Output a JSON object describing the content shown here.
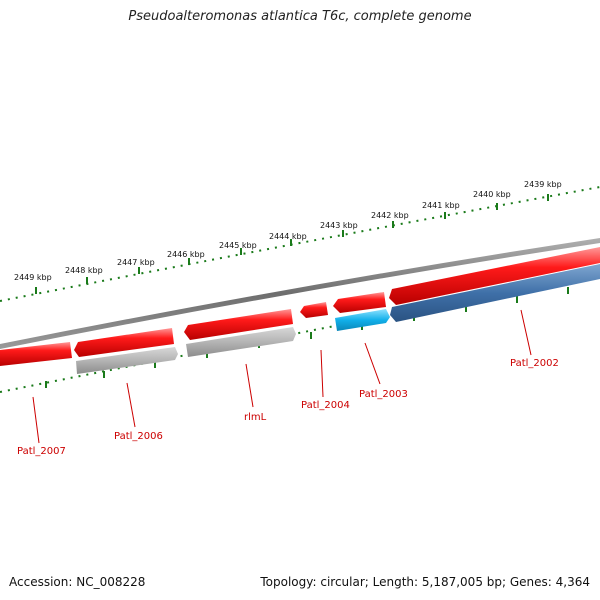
{
  "title": "Pseudoalteromonas atlantica T6c, complete genome",
  "accession": "Accession: NC_008228",
  "topology": "Topology: circular; Length: 5,187,005 bp; Genes: 4,364",
  "ruler_labels": [
    "2439 kbp",
    "2440 kbp",
    "2441 kbp",
    "2442 kbp",
    "2443 kbp",
    "2444 kbp",
    "2445 kbp",
    "2446 kbp",
    "2447 kbp",
    "2448 kbp",
    "2449 kbp"
  ],
  "gene_labels": [
    "Patl_2002",
    "Patl_2003",
    "Patl_2004",
    "rlmL",
    "Patl_2006",
    "Patl_2007"
  ],
  "colors": {
    "backbone": "#7a7a7a",
    "gene_forward": "#ee0000",
    "gene_reverse_grey": "#a8a8a8",
    "gene_reverse_blue": "#3a6ea8",
    "gene_highlight": "#1ab2e8",
    "ruler": "#1a7a1a",
    "label": "#cc0000"
  }
}
